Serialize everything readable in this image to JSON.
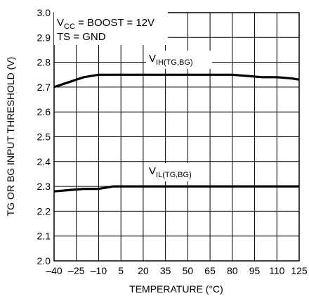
{
  "chart_data": {
    "type": "line",
    "xlabel": "TEMPERATURE (°C)",
    "ylabel": "TG OR BG INPUT THRESHOLD (V)",
    "xlim": [
      -40,
      125
    ],
    "ylim": [
      2.0,
      3.0
    ],
    "x_ticks": [
      -40,
      -25,
      -10,
      5,
      20,
      35,
      50,
      65,
      80,
      95,
      110,
      125
    ],
    "x_tick_labels": [
      "–40",
      "–25",
      "–10",
      "5",
      "20",
      "35",
      "50",
      "65",
      "80",
      "95",
      "110",
      "125"
    ],
    "y_ticks": [
      2.0,
      2.1,
      2.2,
      2.3,
      2.4,
      2.5,
      2.6,
      2.7,
      2.8,
      2.9,
      3.0
    ],
    "y_tick_labels": [
      "2.0",
      "2.1",
      "2.2",
      "2.3",
      "2.4",
      "2.5",
      "2.6",
      "2.7",
      "2.8",
      "2.9",
      "3.0"
    ],
    "grid": true,
    "annotations": [
      {
        "main": "V",
        "sub": "CC",
        "rest": " = BOOST = 12V"
      },
      {
        "main": "TS = GND"
      }
    ],
    "series": [
      {
        "label_main": "V",
        "label_sub": "IH(TG,BG)",
        "x": [
          -40,
          -30,
          -20,
          -10,
          0,
          10,
          20,
          30,
          40,
          50,
          60,
          70,
          80,
          90,
          100,
          110,
          120,
          125
        ],
        "y": [
          2.7,
          2.72,
          2.74,
          2.75,
          2.75,
          2.75,
          2.75,
          2.75,
          2.75,
          2.75,
          2.75,
          2.75,
          2.75,
          2.745,
          2.74,
          2.74,
          2.735,
          2.73
        ]
      },
      {
        "label_main": "V",
        "label_sub": "IL(TG,BG)",
        "x": [
          -40,
          -30,
          -20,
          -10,
          -5,
          0,
          5,
          20,
          35,
          50,
          65,
          80,
          95,
          110,
          125
        ],
        "y": [
          2.28,
          2.285,
          2.29,
          2.29,
          2.295,
          2.3,
          2.3,
          2.3,
          2.3,
          2.3,
          2.3,
          2.3,
          2.3,
          2.3,
          2.3
        ]
      }
    ]
  }
}
